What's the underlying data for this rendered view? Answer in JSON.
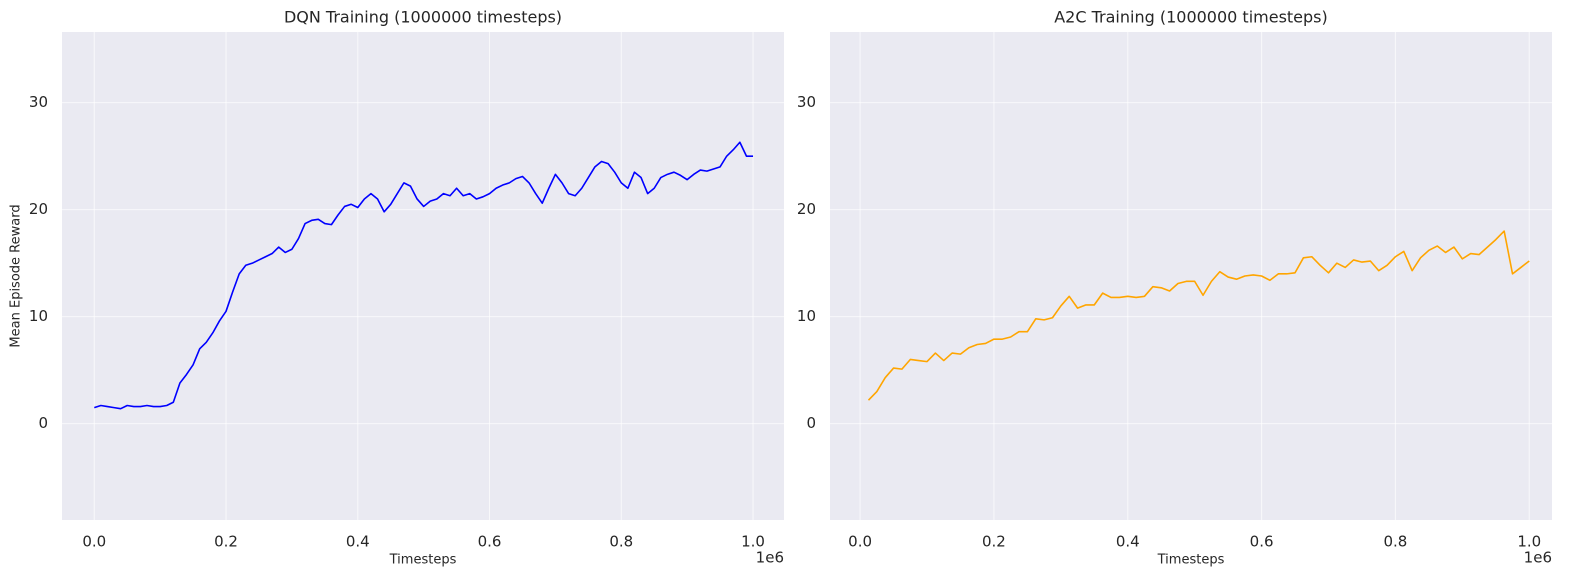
{
  "chart_data": [
    {
      "type": "line",
      "title": "DQN Training (1000000 timesteps)",
      "x_label": "Timesteps",
      "y_label": "Mean Episode Reward",
      "x_offset_label": "1e6",
      "x": [
        0,
        0.01,
        0.02,
        0.03,
        0.04,
        0.05,
        0.06,
        0.07,
        0.08,
        0.09,
        0.1,
        0.11,
        0.12,
        0.13,
        0.14,
        0.15,
        0.16,
        0.17,
        0.18,
        0.19,
        0.2,
        0.21,
        0.22,
        0.23,
        0.24,
        0.25,
        0.26,
        0.27,
        0.28,
        0.29,
        0.3,
        0.31,
        0.32,
        0.33,
        0.34,
        0.35,
        0.36,
        0.37,
        0.38,
        0.39,
        0.4,
        0.41,
        0.42,
        0.43,
        0.44,
        0.45,
        0.46,
        0.47,
        0.48,
        0.49,
        0.5,
        0.51,
        0.52,
        0.53,
        0.54,
        0.55,
        0.56,
        0.57,
        0.58,
        0.59,
        0.6,
        0.61,
        0.62,
        0.63,
        0.64,
        0.65,
        0.66,
        0.67,
        0.68,
        0.69,
        0.7,
        0.71,
        0.72,
        0.73,
        0.74,
        0.75,
        0.76,
        0.77,
        0.78,
        0.79,
        0.8,
        0.81,
        0.82,
        0.83,
        0.84,
        0.85,
        0.86,
        0.87,
        0.88,
        0.89,
        0.9,
        0.91,
        0.92,
        0.93,
        0.94,
        0.95,
        0.96,
        0.97,
        0.98,
        0.99,
        1
      ],
      "series": [
        {
          "color": "#0000ff",
          "values": [
            1.5,
            1.7,
            1.6,
            1.5,
            1.4,
            1.7,
            1.6,
            1.6,
            1.7,
            1.6,
            1.6,
            1.7,
            2.0,
            3.8,
            4.6,
            5.5,
            7.0,
            7.6,
            8.5,
            9.6,
            10.5,
            12.3,
            14.0,
            14.8,
            15.0,
            15.3,
            15.6,
            15.9,
            16.5,
            16.0,
            16.3,
            17.3,
            18.7,
            19.0,
            19.1,
            18.7,
            18.6,
            19.5,
            20.3,
            20.5,
            20.2,
            21.0,
            21.5,
            21.0,
            19.8,
            20.5,
            21.5,
            22.5,
            22.2,
            21.0,
            20.3,
            20.8,
            21.0,
            21.5,
            21.3,
            22.0,
            21.3,
            21.5,
            21.0,
            21.2,
            21.5,
            22.0,
            22.3,
            22.5,
            22.9,
            23.1,
            22.5,
            21.5,
            20.6,
            22.0,
            23.3,
            22.5,
            21.5,
            21.3,
            22.0,
            23.0,
            24.0,
            24.5,
            24.3,
            23.5,
            22.5,
            22.0,
            23.5,
            23.0,
            21.5,
            22.0,
            23.0,
            23.3,
            23.5,
            23.2,
            22.8,
            23.3,
            23.7,
            23.6,
            23.8,
            24.0,
            25.0,
            25.6,
            26.3,
            25.0,
            25.0
          ]
        }
      ],
      "xlim": [
        -0.049,
        1.047
      ],
      "ylim": [
        -9,
        36.6
      ],
      "xticks": [
        {
          "value": 0,
          "label": "0.0"
        },
        0.2,
        0.4,
        0.6,
        0.8,
        {
          "value": 1,
          "label": "1.0"
        }
      ],
      "yticks": [
        0,
        10,
        20,
        30
      ],
      "grid": true
    },
    {
      "type": "line",
      "title": "A2C Training (1000000 timesteps)",
      "x_label": "Timesteps",
      "x_offset_label": "1e6",
      "x": [
        0.0125,
        0.025,
        0.0375,
        0.05,
        0.0625,
        0.075,
        0.0875,
        0.1,
        0.1125,
        0.125,
        0.1375,
        0.15,
        0.1625,
        0.175,
        0.1875,
        0.2,
        0.2125,
        0.225,
        0.2375,
        0.25,
        0.2625,
        0.275,
        0.2875,
        0.3,
        0.3125,
        0.325,
        0.3375,
        0.35,
        0.3625,
        0.375,
        0.3875,
        0.4,
        0.4125,
        0.425,
        0.4375,
        0.45,
        0.4625,
        0.475,
        0.4875,
        0.5,
        0.5125,
        0.525,
        0.5375,
        0.55,
        0.5625,
        0.575,
        0.5875,
        0.6,
        0.6125,
        0.625,
        0.6375,
        0.65,
        0.6625,
        0.675,
        0.6875,
        0.7,
        0.7125,
        0.725,
        0.7375,
        0.75,
        0.7625,
        0.775,
        0.7875,
        0.8,
        0.8125,
        0.825,
        0.8375,
        0.85,
        0.8625,
        0.875,
        0.8875,
        0.9,
        0.9125,
        0.925,
        0.9375,
        0.95,
        0.9625,
        0.975,
        0.9875,
        1
      ],
      "series": [
        {
          "color": "#ffa500",
          "values": [
            2.2,
            3.0,
            4.3,
            5.2,
            5.1,
            6.0,
            5.9,
            5.8,
            6.6,
            5.9,
            6.6,
            6.5,
            7.1,
            7.4,
            7.5,
            7.9,
            7.9,
            8.1,
            8.6,
            8.6,
            9.8,
            9.7,
            9.9,
            11.0,
            11.9,
            10.8,
            11.1,
            11.1,
            12.2,
            11.8,
            11.8,
            11.9,
            11.8,
            11.9,
            12.8,
            12.7,
            12.4,
            13.1,
            13.3,
            13.3,
            12.0,
            13.3,
            14.2,
            13.7,
            13.5,
            13.8,
            13.9,
            13.8,
            13.4,
            14.0,
            14.0,
            14.1,
            15.5,
            15.6,
            14.8,
            14.1,
            15.0,
            14.6,
            15.3,
            15.1,
            15.2,
            14.3,
            14.8,
            15.6,
            16.1,
            14.3,
            15.5,
            16.2,
            16.6,
            16.0,
            16.5,
            15.4,
            15.9,
            15.8,
            16.5,
            17.2,
            18.0,
            14.0,
            14.6,
            15.2
          ]
        }
      ],
      "xlim": [
        -0.045,
        1.034
      ],
      "ylim": [
        -9,
        36.6
      ],
      "xticks": [
        {
          "value": 0,
          "label": "0.0"
        },
        0.2,
        0.4,
        0.6,
        0.8,
        {
          "value": 1,
          "label": "1.0"
        }
      ],
      "yticks": [
        0,
        10,
        20,
        30
      ],
      "grid": true
    }
  ]
}
